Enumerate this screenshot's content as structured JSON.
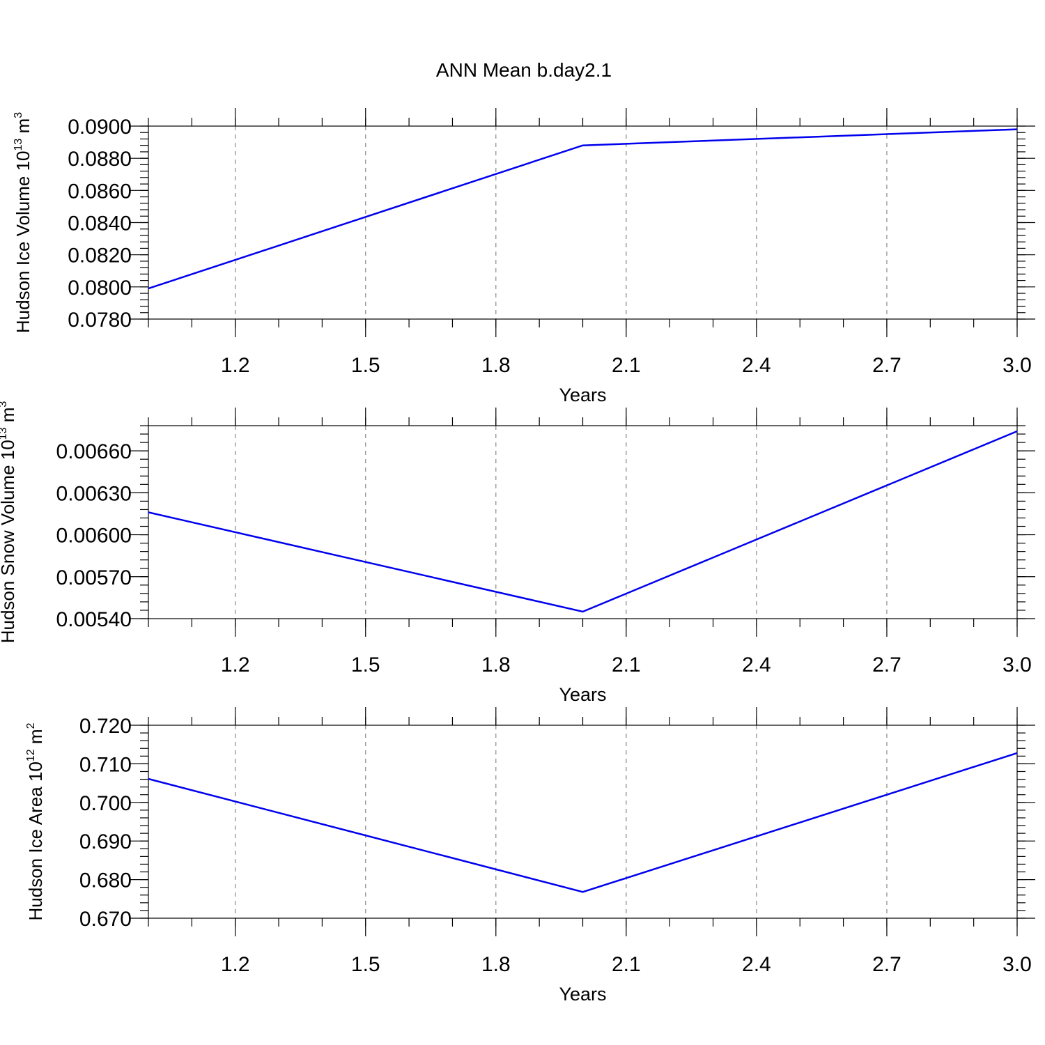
{
  "title": "ANN Mean b.day2.1",
  "chart_data": [
    {
      "type": "line",
      "ylabel": "Hudson Ice Volume 10",
      "ylabel_exp": "13",
      "ylabel_unit": " m",
      "ylabel_unit_exp": "3",
      "xlabel": "Years",
      "x": [
        1.0,
        2.0,
        3.0
      ],
      "series": [
        {
          "values": [
            0.0799,
            0.0888,
            0.0898
          ]
        }
      ],
      "xlim": [
        1.0,
        3.0
      ],
      "ylim": [
        0.078,
        0.09
      ],
      "xticks": [
        1.2,
        1.5,
        1.8,
        2.1,
        2.4,
        2.7,
        3.0
      ],
      "xtick_labels": [
        "1.2",
        "1.5",
        "1.8",
        "2.1",
        "2.4",
        "2.7",
        "3.0"
      ],
      "yticks": [
        0.078,
        0.08,
        0.082,
        0.084,
        0.086,
        0.088,
        0.09
      ],
      "ytick_labels": [
        "0.0780",
        "0.0800",
        "0.0820",
        "0.0840",
        "0.0860",
        "0.0880",
        "0.0900"
      ],
      "grid": "vertical dashed",
      "color": "#0000ee"
    },
    {
      "type": "line",
      "ylabel": "Hudson Snow Volume 10",
      "ylabel_exp": "13",
      "ylabel_unit": " m",
      "ylabel_unit_exp": "3",
      "xlabel": "Years",
      "x": [
        1.0,
        2.0,
        3.0
      ],
      "series": [
        {
          "values": [
            0.00616,
            0.00545,
            0.00674
          ]
        }
      ],
      "xlim": [
        1.0,
        3.0
      ],
      "ylim": [
        0.0054,
        0.00678
      ],
      "xticks": [
        1.2,
        1.5,
        1.8,
        2.1,
        2.4,
        2.7,
        3.0
      ],
      "xtick_labels": [
        "1.2",
        "1.5",
        "1.8",
        "2.1",
        "2.4",
        "2.7",
        "3.0"
      ],
      "yticks": [
        0.0054,
        0.0057,
        0.006,
        0.0063,
        0.0066
      ],
      "ytick_labels": [
        "0.00540",
        "0.00570",
        "0.00600",
        "0.00630",
        "0.00660"
      ],
      "grid": "vertical dashed",
      "color": "#0000ee"
    },
    {
      "type": "line",
      "ylabel": "Hudson Ice Area 10",
      "ylabel_exp": "12",
      "ylabel_unit": " m",
      "ylabel_unit_exp": "2",
      "xlabel": "Years",
      "x": [
        1.0,
        2.0,
        3.0
      ],
      "series": [
        {
          "values": [
            0.7061,
            0.6768,
            0.7128
          ]
        }
      ],
      "xlim": [
        1.0,
        3.0
      ],
      "ylim": [
        0.67,
        0.72
      ],
      "xticks": [
        1.2,
        1.5,
        1.8,
        2.1,
        2.4,
        2.7,
        3.0
      ],
      "xtick_labels": [
        "1.2",
        "1.5",
        "1.8",
        "2.1",
        "2.4",
        "2.7",
        "3.0"
      ],
      "yticks": [
        0.67,
        0.68,
        0.69,
        0.7,
        0.71,
        0.72
      ],
      "ytick_labels": [
        "0.670",
        "0.680",
        "0.690",
        "0.700",
        "0.710",
        "0.720"
      ],
      "grid": "vertical dashed",
      "color": "#0000ee"
    }
  ]
}
